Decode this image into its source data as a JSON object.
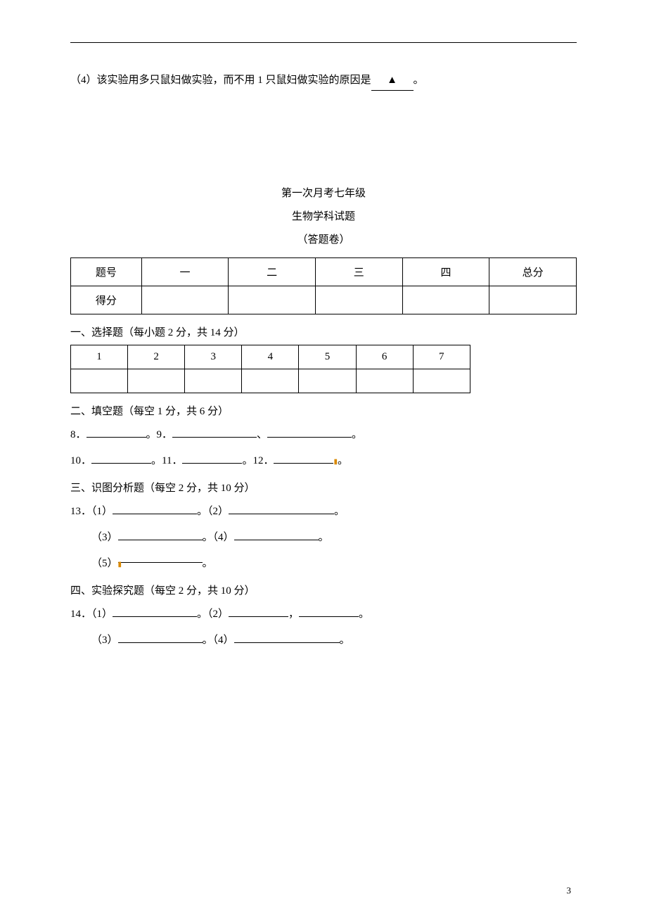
{
  "q4_text_before": "（4）该实验用多只鼠妇做实验，而不用 1 只鼠妇做实验的原因是",
  "triangle_symbol": "▲",
  "q4_text_after": "。",
  "title": {
    "line1": "第一次月考七年级",
    "line2": "生物学科试题",
    "line3": "（答题卷）"
  },
  "score_table": {
    "headers": [
      "题号",
      "一",
      "二",
      "三",
      "四",
      "总分"
    ],
    "row2_label": "得分"
  },
  "sections": {
    "s1": "一、选择题（每小题 2 分，共 14 分）",
    "s2": "二、填空题（每空 1 分，共 6 分）",
    "s3": "三、识图分析题（每空 2 分，共 10 分）",
    "s4": "四、实验探究题（每空 2 分，共 10 分）"
  },
  "mcq_numbers": [
    "1",
    "2",
    "3",
    "4",
    "5",
    "6",
    "7"
  ],
  "fill": {
    "l1_a": "8．",
    "l1_b": "。9．",
    "l1_c": "、",
    "l1_d": "。",
    "l2_a": "10．",
    "l2_b": "。11．",
    "l2_c": "。12．",
    "l2_d": "。",
    "l3_a": "13．（1）",
    "l3_b": "。（2）",
    "l3_c": "。",
    "l4_a": "（3）",
    "l4_b": "。（4）",
    "l4_c": "。",
    "l5_a": "（5）",
    "l5_b": "。",
    "l6_a": "14．（1）",
    "l6_b": "。（2）",
    "l6_c": "，",
    "l6_d": "。",
    "l7_a": "（3）",
    "l7_b": "。（4）",
    "l7_c": "。"
  },
  "page_number": "3"
}
